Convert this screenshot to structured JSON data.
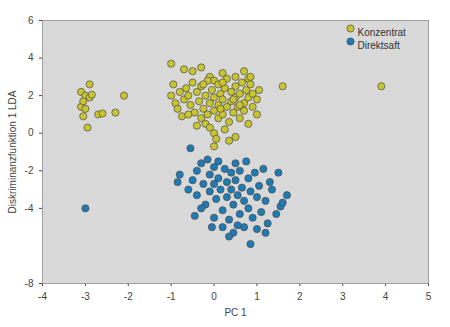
{
  "chart_data": {
    "type": "scatter",
    "x_label": "PC 1",
    "y_label": "Diskriminanzfunktion 1 LDA",
    "xlim": [
      -4,
      5
    ],
    "xticks": [
      -4,
      -3,
      -2,
      -1,
      0,
      1,
      2,
      3,
      4,
      5
    ],
    "ylim": [
      -8,
      6
    ],
    "yticks": [
      6,
      4,
      2,
      0,
      -2,
      -4,
      -8
    ],
    "grid": false,
    "legend": "top-right",
    "marker": "circle",
    "series": [
      {
        "name": "Konzentrat",
        "color": "#c8c530",
        "x": [
          -3.1,
          -3.0,
          -2.9,
          -3.1,
          -3.0,
          -2.95,
          -3.05,
          -2.7,
          -2.6,
          -2.3,
          -2.1,
          -2.9,
          -2.85,
          -3.05,
          1.6,
          3.9,
          -1.0,
          -0.7,
          -0.5,
          -0.3,
          -0.1,
          0.0,
          0.2,
          0.5,
          0.7,
          0.8,
          0.85,
          -0.95,
          -0.8,
          -0.9,
          -0.85,
          -0.7,
          -0.65,
          -0.6,
          -0.55,
          -0.5,
          -0.45,
          -0.4,
          -0.35,
          -0.3,
          -0.3,
          -0.25,
          -0.2,
          -0.2,
          -0.15,
          -0.1,
          -0.1,
          -0.05,
          0.0,
          0.0,
          0.0,
          0.05,
          0.0,
          0.1,
          0.1,
          0.1,
          0.15,
          0.2,
          0.2,
          0.25,
          0.25,
          0.3,
          0.3,
          0.35,
          0.4,
          0.4,
          0.45,
          0.5,
          0.5,
          0.5,
          0.55,
          0.6,
          0.6,
          0.65,
          0.7,
          0.7,
          0.75,
          0.8,
          0.8,
          0.85,
          0.9,
          0.9,
          1.0,
          1.0,
          1.05,
          -0.75,
          -0.6,
          -0.4,
          0.35,
          -1.0,
          -0.25,
          0.15,
          0.45,
          0.6,
          -0.15,
          0.2
        ],
        "values": [
          2.2,
          2.0,
          1.9,
          1.4,
          1.3,
          0.3,
          0.9,
          1.0,
          1.05,
          1.1,
          2.0,
          2.6,
          2.05,
          1.7,
          2.5,
          2.5,
          3.7,
          3.4,
          3.3,
          3.5,
          3.0,
          2.8,
          3.2,
          3.0,
          3.3,
          2.9,
          3.0,
          2.6,
          2.2,
          1.6,
          1.3,
          1.8,
          2.4,
          2.0,
          1.5,
          2.7,
          1.1,
          2.2,
          1.7,
          2.5,
          0.8,
          1.3,
          2.0,
          0.5,
          2.8,
          1.6,
          0.3,
          2.3,
          1.9,
          1.2,
          0.0,
          -0.3,
          -0.7,
          2.6,
          1.5,
          0.8,
          2.1,
          1.8,
          1.0,
          2.4,
          0.2,
          1.4,
          2.9,
          0.6,
          2.2,
          1.7,
          1.1,
          2.5,
          1.9,
          -0.2,
          1.4,
          2.1,
          0.8,
          2.7,
          1.6,
          1.2,
          2.3,
          1.9,
          0.5,
          2.6,
          1.4,
          2.1,
          1.8,
          1.0,
          2.3,
          0.9,
          1.0,
          0.4,
          -0.4,
          2.0,
          2.6,
          1.3,
          1.8,
          1.5,
          1.0,
          2.7
        ]
      },
      {
        "name": "Direktsaft",
        "color": "#1f7bb3",
        "x": [
          -0.55,
          -0.8,
          -0.85,
          -0.6,
          -0.5,
          -0.4,
          -0.4,
          -0.3,
          -0.25,
          -0.2,
          -0.3,
          -0.15,
          -0.1,
          -0.1,
          0.0,
          0.0,
          0.0,
          0.05,
          0.1,
          0.1,
          0.15,
          0.2,
          0.2,
          0.25,
          0.3,
          0.3,
          0.35,
          0.4,
          0.4,
          0.45,
          0.45,
          0.5,
          0.5,
          0.55,
          0.6,
          0.6,
          0.65,
          0.7,
          0.7,
          0.75,
          0.8,
          0.8,
          0.85,
          0.85,
          0.9,
          0.95,
          1.0,
          1.0,
          1.05,
          1.1,
          1.15,
          1.2,
          1.25,
          1.3,
          1.35,
          1.45,
          1.55,
          1.6,
          1.7,
          1.2,
          0.35,
          -0.05,
          0.55,
          -0.45,
          1.5,
          -3.0
        ],
        "values": [
          -0.8,
          -2.2,
          -2.6,
          -3.0,
          -2.5,
          -2.0,
          -3.3,
          -1.6,
          -2.7,
          -3.8,
          -4.0,
          -1.4,
          -2.2,
          -3.1,
          -1.8,
          -2.7,
          -4.5,
          -3.5,
          -1.5,
          -2.4,
          -3.0,
          -4.1,
          -5.0,
          -1.9,
          -2.6,
          -3.4,
          -4.6,
          -2.1,
          -3.0,
          -3.8,
          -5.3,
          -1.6,
          -2.5,
          -3.3,
          -4.3,
          -2.0,
          -2.9,
          -3.6,
          -5.0,
          -1.5,
          -2.4,
          -4.0,
          -3.1,
          -5.9,
          -4.5,
          -2.1,
          -3.4,
          -5.1,
          -2.8,
          -4.2,
          -1.9,
          -3.6,
          -4.8,
          -2.6,
          -3.0,
          -4.3,
          -3.9,
          -3.7,
          -3.3,
          -5.3,
          -5.5,
          -5.0,
          -4.9,
          -4.4,
          -2.1,
          -4.0
        ]
      }
    ]
  }
}
